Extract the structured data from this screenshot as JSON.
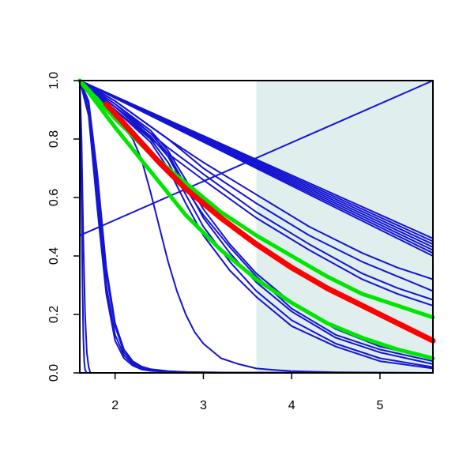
{
  "chart_data": {
    "type": "line",
    "title": "",
    "xlabel": "",
    "ylabel": "",
    "xlim": [
      1.6,
      5.6
    ],
    "ylim": [
      0,
      1
    ],
    "x_ticks": [
      {
        "value": 2,
        "label": "2"
      },
      {
        "value": 3,
        "label": "3"
      },
      {
        "value": 4,
        "label": "4"
      },
      {
        "value": 5,
        "label": "5"
      }
    ],
    "y_ticks": [
      {
        "value": 0.0,
        "label": "0.0"
      },
      {
        "value": 0.2,
        "label": "0.2"
      },
      {
        "value": 0.4,
        "label": "0.4"
      },
      {
        "value": 0.6,
        "label": "0.6"
      },
      {
        "value": 0.8,
        "label": "0.8"
      },
      {
        "value": 1.0,
        "label": "1.0"
      }
    ],
    "shaded_region": {
      "x_start": 3.6,
      "x_end": 5.6,
      "color": "#e0eeee"
    },
    "grid": false,
    "colors": {
      "thin": "#1414d2",
      "red": "#ff0000",
      "green": "#00e600"
    },
    "series": [
      {
        "color": "thin",
        "width": 2,
        "x": [
          1.6,
          5.6
        ],
        "y": [
          0.47,
          1.0
        ]
      },
      {
        "color": "thin",
        "width": 2,
        "x": [
          1.6,
          1.62,
          1.63,
          1.64,
          1.65,
          1.66,
          1.68,
          1.7
        ],
        "y": [
          1.0,
          0.6,
          0.3,
          0.12,
          0.04,
          0.01,
          0.0,
          0.0
        ]
      },
      {
        "color": "thin",
        "width": 2,
        "x": [
          1.6,
          1.62,
          1.64,
          1.66,
          1.68,
          1.7,
          1.72
        ],
        "y": [
          1.0,
          0.8,
          0.45,
          0.2,
          0.07,
          0.02,
          0.0
        ]
      },
      {
        "color": "thin",
        "width": 2,
        "x": [
          1.6,
          1.7,
          1.8,
          1.9,
          2.0,
          2.1,
          2.2,
          2.3,
          2.4,
          2.6,
          2.8,
          3.0,
          3.3,
          5.6
        ],
        "y": [
          1.0,
          0.93,
          0.68,
          0.36,
          0.17,
          0.08,
          0.04,
          0.022,
          0.013,
          0.006,
          0.003,
          0.002,
          0.001,
          0.0
        ]
      },
      {
        "color": "thin",
        "width": 2,
        "x": [
          1.6,
          1.7,
          1.8,
          1.9,
          2.0,
          2.1,
          2.2,
          2.3,
          2.4,
          2.6,
          2.8,
          3.0,
          3.3,
          5.6
        ],
        "y": [
          1.0,
          0.92,
          0.65,
          0.34,
          0.16,
          0.07,
          0.035,
          0.018,
          0.01,
          0.005,
          0.003,
          0.002,
          0.001,
          0.0
        ]
      },
      {
        "color": "thin",
        "width": 2,
        "x": [
          1.6,
          1.7,
          1.8,
          1.9,
          2.0,
          2.1,
          2.2,
          2.3,
          2.4,
          2.6,
          2.8,
          3.0,
          3.3,
          5.6
        ],
        "y": [
          1.0,
          0.9,
          0.6,
          0.3,
          0.13,
          0.06,
          0.03,
          0.015,
          0.008,
          0.004,
          0.002,
          0.001,
          0.0,
          0.0
        ]
      },
      {
        "color": "thin",
        "width": 2,
        "x": [
          1.6,
          1.7,
          1.8,
          1.9,
          2.0,
          2.1,
          2.2,
          2.3,
          2.4,
          2.6,
          2.8,
          3.0,
          3.3,
          5.6
        ],
        "y": [
          1.0,
          0.88,
          0.56,
          0.27,
          0.11,
          0.05,
          0.025,
          0.012,
          0.007,
          0.003,
          0.002,
          0.001,
          0.0,
          0.0
        ]
      },
      {
        "color": "thin",
        "width": 2,
        "x": [
          1.6,
          1.8,
          2.0,
          2.2,
          2.3,
          2.4,
          2.5,
          2.6,
          2.7,
          2.8,
          2.9,
          3.0,
          3.2,
          3.4,
          3.6,
          3.8,
          4.0,
          4.5,
          5.0,
          5.6
        ],
        "y": [
          1.0,
          0.95,
          0.88,
          0.8,
          0.73,
          0.62,
          0.5,
          0.38,
          0.28,
          0.2,
          0.14,
          0.1,
          0.05,
          0.03,
          0.015,
          0.01,
          0.006,
          0.002,
          0.001,
          0.0
        ]
      },
      {
        "color": "thin",
        "width": 2,
        "x": [
          1.6,
          5.6
        ],
        "y": [
          1.0,
          0.46
        ]
      },
      {
        "color": "thin",
        "width": 2,
        "x": [
          1.6,
          5.6
        ],
        "y": [
          1.0,
          0.45
        ]
      },
      {
        "color": "thin",
        "width": 2,
        "x": [
          1.6,
          5.6
        ],
        "y": [
          1.0,
          0.44
        ]
      },
      {
        "color": "thin",
        "width": 2,
        "x": [
          1.6,
          5.6
        ],
        "y": [
          1.0,
          0.43
        ]
      },
      {
        "color": "thin",
        "width": 2,
        "x": [
          1.6,
          5.6
        ],
        "y": [
          1.0,
          0.42
        ]
      },
      {
        "color": "thin",
        "width": 2,
        "x": [
          1.6,
          5.6
        ],
        "y": [
          1.0,
          0.41
        ]
      },
      {
        "color": "thin",
        "width": 2,
        "x": [
          1.6,
          5.6
        ],
        "y": [
          1.0,
          0.4
        ]
      },
      {
        "color": "thin",
        "width": 2,
        "x": [
          1.6,
          2.0,
          2.6,
          3.0,
          3.6,
          4.2,
          4.8,
          5.2,
          5.6
        ],
        "y": [
          1.0,
          0.93,
          0.8,
          0.72,
          0.61,
          0.5,
          0.41,
          0.36,
          0.32
        ]
      },
      {
        "color": "thin",
        "width": 2,
        "x": [
          1.6,
          2.0,
          2.6,
          3.0,
          3.6,
          4.2,
          4.8,
          5.2,
          5.6
        ],
        "y": [
          1.0,
          0.92,
          0.77,
          0.68,
          0.55,
          0.44,
          0.34,
          0.29,
          0.25
        ]
      },
      {
        "color": "thin",
        "width": 2,
        "x": [
          1.6,
          2.0,
          2.6,
          3.0,
          3.6,
          4.2,
          4.8,
          5.2,
          5.6
        ],
        "y": [
          1.0,
          0.91,
          0.75,
          0.66,
          0.53,
          0.42,
          0.32,
          0.27,
          0.23
        ]
      },
      {
        "color": "thin",
        "width": 2,
        "x": [
          1.6,
          2.0,
          2.6,
          3.0,
          3.6,
          4.2,
          4.8,
          5.2,
          5.6
        ],
        "y": [
          1.0,
          0.93,
          0.8,
          0.7,
          0.58,
          0.47,
          0.38,
          0.33,
          0.28
        ]
      },
      {
        "color": "thin",
        "width": 2,
        "x": [
          1.6,
          2.0,
          2.4,
          2.6,
          2.8,
          3.0,
          3.3,
          3.6,
          4.0,
          4.5,
          5.0,
          5.6
        ],
        "y": [
          1.0,
          0.92,
          0.83,
          0.76,
          0.66,
          0.56,
          0.44,
          0.34,
          0.24,
          0.15,
          0.09,
          0.05
        ]
      },
      {
        "color": "thin",
        "width": 2,
        "x": [
          1.6,
          2.0,
          2.4,
          2.6,
          2.8,
          3.0,
          3.3,
          3.6,
          4.0,
          4.5,
          5.0,
          5.6
        ],
        "y": [
          1.0,
          0.91,
          0.82,
          0.75,
          0.64,
          0.53,
          0.41,
          0.31,
          0.21,
          0.12,
          0.07,
          0.03
        ]
      },
      {
        "color": "thin",
        "width": 2,
        "x": [
          1.6,
          2.0,
          2.4,
          2.6,
          2.8,
          3.0,
          3.3,
          3.6,
          4.0,
          4.5,
          5.0,
          5.6
        ],
        "y": [
          1.0,
          0.9,
          0.8,
          0.72,
          0.61,
          0.5,
          0.38,
          0.28,
          0.18,
          0.1,
          0.05,
          0.02
        ]
      },
      {
        "color": "thin",
        "width": 2,
        "x": [
          1.6,
          2.0,
          2.4,
          2.6,
          2.8,
          3.0,
          3.3,
          3.6,
          4.0,
          4.5,
          5.0,
          5.6
        ],
        "y": [
          1.0,
          0.9,
          0.79,
          0.7,
          0.58,
          0.47,
          0.35,
          0.26,
          0.16,
          0.09,
          0.04,
          0.015
        ]
      },
      {
        "color": "thin",
        "width": 2,
        "x": [
          1.6,
          2.0,
          2.4,
          2.6,
          2.8,
          3.0,
          3.3,
          3.6,
          4.0,
          4.5,
          5.0,
          5.6
        ],
        "y": [
          1.0,
          0.91,
          0.81,
          0.74,
          0.63,
          0.54,
          0.43,
          0.33,
          0.22,
          0.13,
          0.08,
          0.04
        ]
      },
      {
        "color": "green",
        "width": 5,
        "x": [
          1.6,
          2.0,
          2.4,
          2.8,
          3.2,
          3.6,
          4.0,
          4.4,
          4.8,
          5.2,
          5.6
        ],
        "y": [
          1.0,
          0.87,
          0.75,
          0.65,
          0.55,
          0.47,
          0.4,
          0.33,
          0.27,
          0.23,
          0.19
        ]
      },
      {
        "color": "green",
        "width": 5,
        "x": [
          1.6,
          2.0,
          2.4,
          2.8,
          3.2,
          3.6,
          4.0,
          4.4,
          4.8,
          5.2,
          5.6
        ],
        "y": [
          1.0,
          0.84,
          0.69,
          0.54,
          0.42,
          0.32,
          0.24,
          0.17,
          0.12,
          0.08,
          0.05
        ]
      },
      {
        "color": "red",
        "width": 7,
        "x": [
          1.9,
          2.2,
          2.5,
          2.8,
          3.2,
          3.6,
          4.0,
          4.4,
          4.8,
          5.2,
          5.6
        ],
        "y": [
          0.92,
          0.82,
          0.72,
          0.63,
          0.53,
          0.44,
          0.36,
          0.29,
          0.23,
          0.17,
          0.11
        ]
      }
    ]
  }
}
